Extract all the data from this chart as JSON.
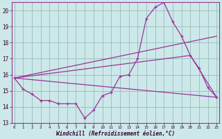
{
  "xlabel": "Windchill (Refroidissement éolien,°C)",
  "bg_color": "#cce8e8",
  "grid_color": "#99bbbb",
  "line_color": "#993399",
  "xmin": 0,
  "xmax": 23,
  "ymin": 13,
  "ymax": 20.5,
  "yticks": [
    13,
    14,
    15,
    16,
    17,
    18,
    19,
    20
  ],
  "xticks": [
    0,
    1,
    2,
    3,
    4,
    5,
    6,
    7,
    8,
    9,
    10,
    11,
    12,
    13,
    14,
    15,
    16,
    17,
    18,
    19,
    20,
    21,
    22,
    23
  ],
  "line1_x": [
    0,
    1,
    2,
    3,
    4,
    5,
    6,
    7,
    8,
    9,
    10,
    11,
    12,
    13,
    14,
    15,
    16,
    17,
    18,
    19,
    20,
    21,
    22,
    23
  ],
  "line1_y": [
    15.8,
    15.1,
    14.8,
    14.4,
    14.4,
    14.2,
    14.2,
    14.2,
    13.3,
    13.8,
    14.7,
    14.9,
    15.9,
    16.0,
    17.0,
    19.5,
    20.2,
    20.5,
    19.3,
    18.4,
    17.2,
    16.4,
    15.2,
    14.6
  ],
  "line2_x": [
    0,
    23
  ],
  "line2_y": [
    15.8,
    14.6
  ],
  "line3_x": [
    0,
    23
  ],
  "line3_y": [
    15.8,
    18.4
  ],
  "line4_x": [
    0,
    20,
    23
  ],
  "line4_y": [
    15.8,
    17.2,
    14.6
  ]
}
